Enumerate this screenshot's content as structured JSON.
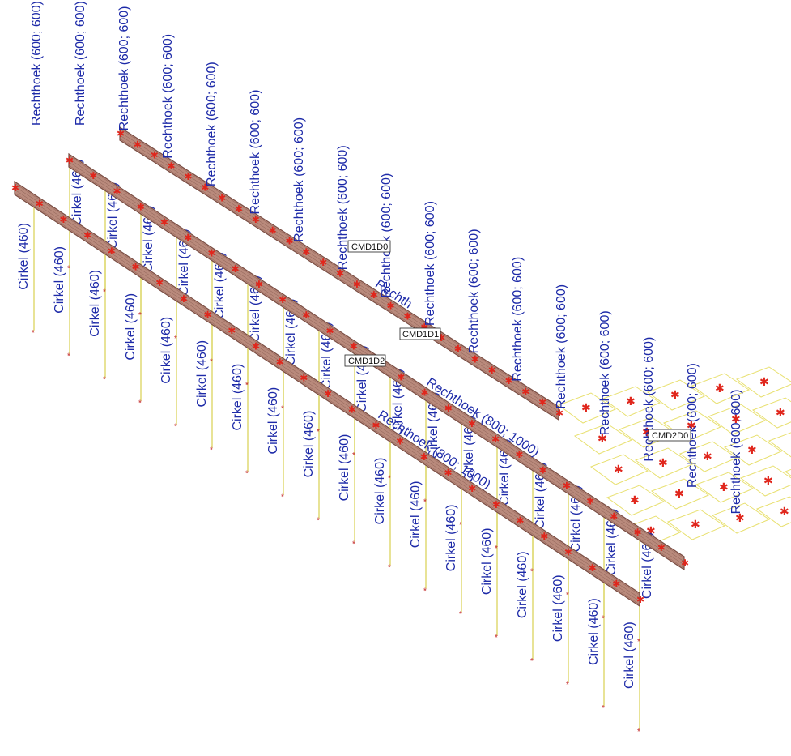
{
  "colors": {
    "label": "#1d2aa8",
    "pile": "#d8d050",
    "beam_body": "#b98a7c",
    "beam_edge": "#7a4e44",
    "beam_mark": "#e0261c",
    "footing": "#e8e070",
    "tag_border": "#222222"
  },
  "labels": {
    "pile": "Cirkel (460)",
    "column": "Rechthoek (600; 600)",
    "beam_800": "Rechthoek (800; 1000)",
    "rechth": "Rechth",
    "tag_cmd1d0": "CMD1D0",
    "tag_cmd1d1": "CMD1D1",
    "tag_cmd1d2": "CMD1D2",
    "tag_cmd2d0": "CMD2D0"
  }
}
